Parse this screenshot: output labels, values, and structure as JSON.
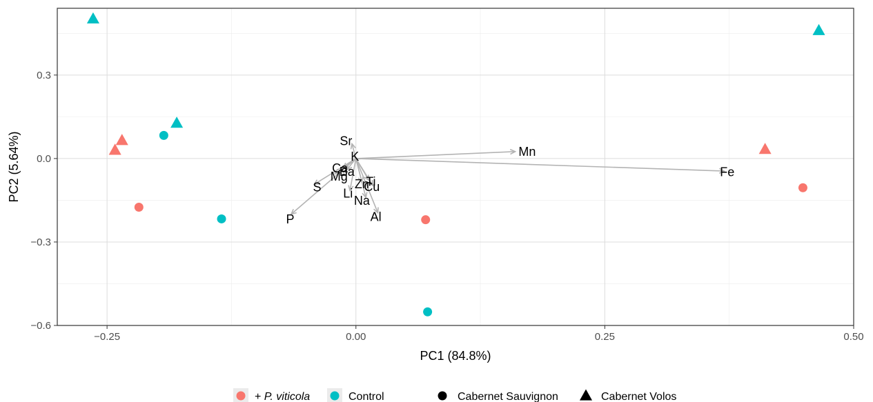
{
  "chart_data": {
    "type": "scatter",
    "title": "",
    "xlabel": "PC1 (84.8%)",
    "ylabel": "PC2 (5.64%)",
    "xlim": [
      -0.3,
      0.5
    ],
    "ylim": [
      -0.6,
      0.54
    ],
    "x_ticks": [
      -0.25,
      0.0,
      0.25,
      0.5
    ],
    "x_tick_labels": [
      "−0.25",
      "0.00",
      "0.25",
      "0.50"
    ],
    "y_ticks": [
      -0.6,
      -0.3,
      0.0,
      0.3
    ],
    "y_tick_labels": [
      "−0.6",
      "−0.3",
      "0.0",
      "0.3"
    ],
    "grid": true,
    "legend_position": "bottom",
    "treatment_colors": {
      "+ P. viticola": "#F8766D",
      "Control": "#00BFC4"
    },
    "treatment_legend": [
      {
        "prefix": "+ ",
        "label": "P. viticola",
        "italic": true,
        "color": "#F8766D"
      },
      {
        "prefix": "",
        "label": "Control",
        "italic": false,
        "color": "#00BFC4"
      }
    ],
    "cultivar_legend": [
      {
        "label": "Cabernet Sauvignon",
        "shape": "circle"
      },
      {
        "label": "Cabernet Volos",
        "shape": "triangle"
      }
    ],
    "points": [
      {
        "x": -0.264,
        "y": 0.502,
        "treatment": "Control",
        "cultivar": "Cabernet Volos"
      },
      {
        "x": -0.18,
        "y": 0.127,
        "treatment": "Control",
        "cultivar": "Cabernet Volos"
      },
      {
        "x": -0.193,
        "y": 0.083,
        "treatment": "Control",
        "cultivar": "Cabernet Sauvignon"
      },
      {
        "x": -0.135,
        "y": -0.217,
        "treatment": "Control",
        "cultivar": "Cabernet Sauvignon"
      },
      {
        "x": 0.072,
        "y": -0.551,
        "treatment": "Control",
        "cultivar": "Cabernet Sauvignon"
      },
      {
        "x": 0.465,
        "y": 0.46,
        "treatment": "Control",
        "cultivar": "Cabernet Volos"
      },
      {
        "x": -0.235,
        "y": 0.065,
        "treatment": "+ P. viticola",
        "cultivar": "Cabernet Volos"
      },
      {
        "x": -0.242,
        "y": 0.03,
        "treatment": "+ P. viticola",
        "cultivar": "Cabernet Volos"
      },
      {
        "x": -0.218,
        "y": -0.175,
        "treatment": "+ P. viticola",
        "cultivar": "Cabernet Sauvignon"
      },
      {
        "x": 0.07,
        "y": -0.22,
        "treatment": "+ P. viticola",
        "cultivar": "Cabernet Sauvignon"
      },
      {
        "x": 0.411,
        "y": 0.033,
        "treatment": "+ P. viticola",
        "cultivar": "Cabernet Volos"
      },
      {
        "x": 0.449,
        "y": -0.105,
        "treatment": "+ P. viticola",
        "cultivar": "Cabernet Sauvignon"
      }
    ],
    "loadings": [
      {
        "label": "Mn",
        "x": 0.16,
        "y": 0.025,
        "lx": 0.172,
        "ly": 0.024
      },
      {
        "label": "Fe",
        "x": 0.37,
        "y": -0.045,
        "lx": 0.373,
        "ly": -0.048
      },
      {
        "label": "Sr",
        "x": -0.004,
        "y": 0.053,
        "lx": -0.01,
        "ly": 0.063
      },
      {
        "label": "K",
        "x": -0.001,
        "y": 0.003,
        "lx": -0.001,
        "ly": 0.007
      },
      {
        "label": "Ca",
        "x": -0.013,
        "y": -0.033,
        "lx": -0.016,
        "ly": -0.035
      },
      {
        "label": "Ba",
        "x": -0.009,
        "y": -0.04,
        "lx": -0.009,
        "ly": -0.047
      },
      {
        "label": "Mg",
        "x": -0.021,
        "y": -0.055,
        "lx": -0.017,
        "ly": -0.065
      },
      {
        "label": "S",
        "x": -0.042,
        "y": -0.093,
        "lx": -0.039,
        "ly": -0.103
      },
      {
        "label": "Zn",
        "x": 0.006,
        "y": -0.085,
        "lx": 0.006,
        "ly": -0.092
      },
      {
        "label": "Ti",
        "x": 0.013,
        "y": -0.078,
        "lx": 0.015,
        "ly": -0.083
      },
      {
        "label": "Cu",
        "x": 0.017,
        "y": -0.097,
        "lx": 0.016,
        "ly": -0.102
      },
      {
        "label": "Li",
        "x": -0.006,
        "y": -0.115,
        "lx": -0.008,
        "ly": -0.125
      },
      {
        "label": "Na",
        "x": 0.01,
        "y": -0.14,
        "lx": 0.006,
        "ly": -0.152
      },
      {
        "label": "Al",
        "x": 0.022,
        "y": -0.195,
        "lx": 0.02,
        "ly": -0.21
      },
      {
        "label": "P",
        "x": -0.065,
        "y": -0.2,
        "lx": -0.066,
        "ly": -0.218
      }
    ]
  }
}
